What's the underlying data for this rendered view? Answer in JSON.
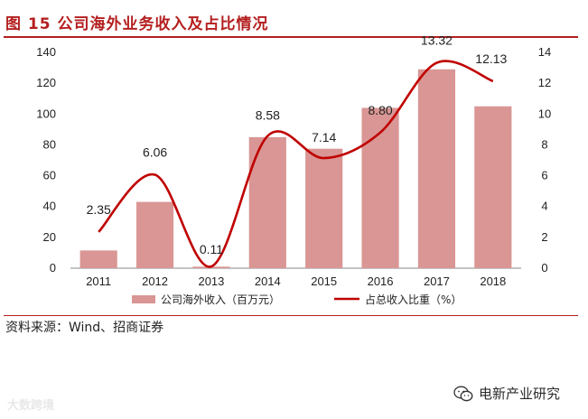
{
  "figure": {
    "title": "图 15 公司海外业务收入及占比情况",
    "source": "资料来源：Wind、招商证券",
    "watermark_left": "大数跨境",
    "watermark_right": "电新产业研究"
  },
  "chart_data": {
    "type": "bar+line",
    "title": "公司海外业务收入及占比情况",
    "categories": [
      "2011",
      "2012",
      "2013",
      "2014",
      "2015",
      "2016",
      "2017",
      "2018"
    ],
    "series": [
      {
        "name": "公司海外收入（百万元）",
        "type": "bar",
        "axis": "left",
        "values": [
          11.5,
          43,
          1,
          85,
          77.5,
          104,
          129,
          105
        ],
        "color": "#d99694"
      },
      {
        "name": "占总收入比重（%）",
        "type": "line",
        "axis": "right",
        "values": [
          2.35,
          6.06,
          0.11,
          8.58,
          7.14,
          8.8,
          13.32,
          12.13
        ],
        "labels": [
          "2.35",
          "6.06",
          "0.11",
          "8.58",
          "7.14",
          "8.80",
          "13.32",
          "12.13"
        ],
        "color": "#c00000"
      }
    ],
    "yleft": {
      "min": 0,
      "max": 140,
      "ticks": [
        "0",
        "20",
        "40",
        "60",
        "80",
        "100",
        "120",
        "140"
      ]
    },
    "yright": {
      "min": 0,
      "max": 14,
      "ticks": [
        "0",
        "2",
        "4",
        "6",
        "8",
        "10",
        "12",
        "14"
      ]
    },
    "legend_position": "bottom",
    "grid": false
  }
}
